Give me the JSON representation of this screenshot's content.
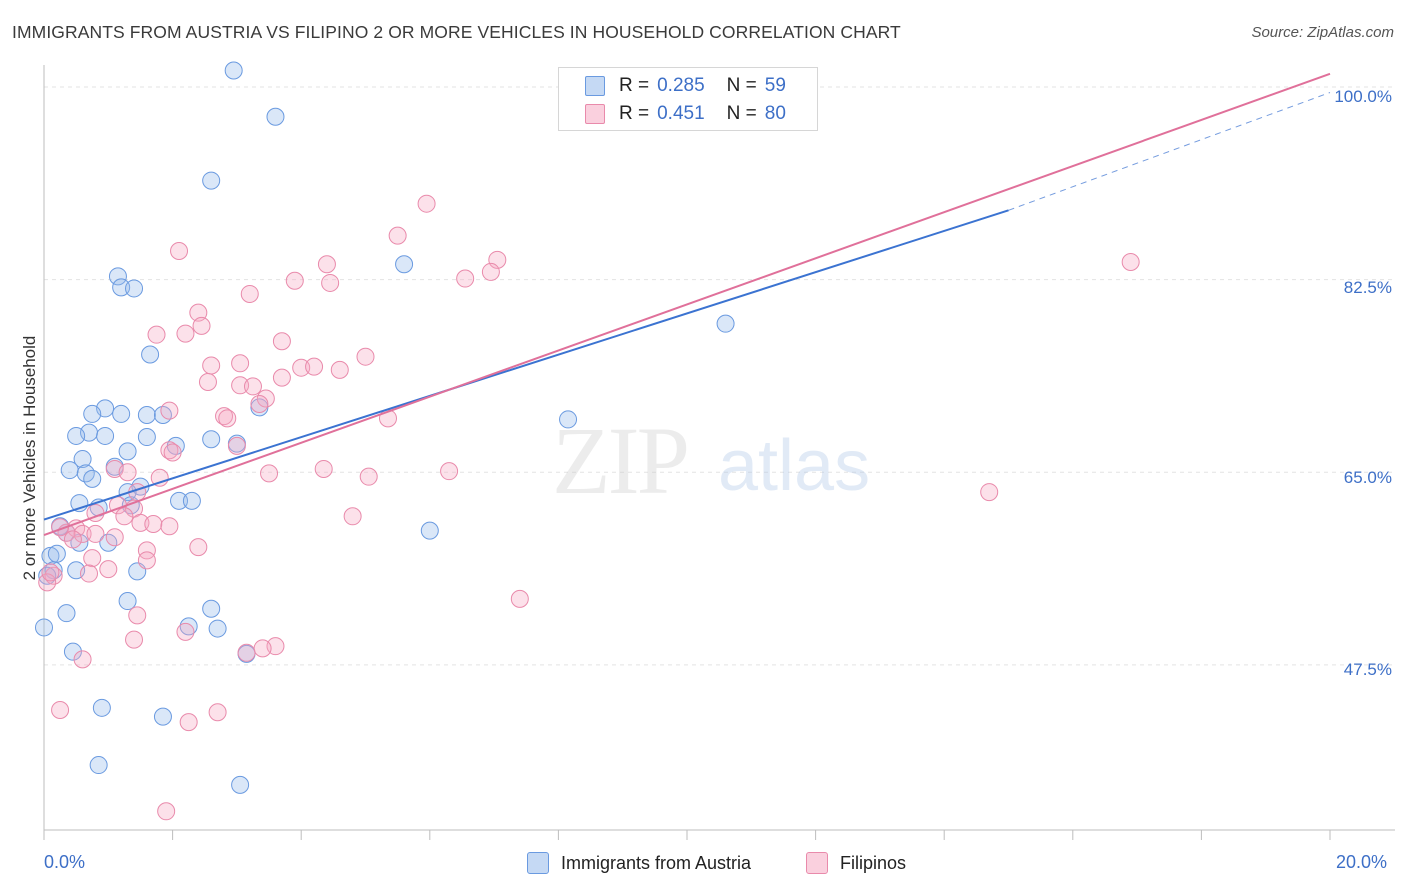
{
  "title": "IMMIGRANTS FROM AUSTRIA VS FILIPINO 2 OR MORE VEHICLES IN HOUSEHOLD CORRELATION CHART",
  "source": "Source: ZipAtlas.com",
  "watermark": {
    "zip": "ZIP",
    "atlas": "atlas"
  },
  "legend": {
    "rows": [
      {
        "r_label": "R =",
        "r_value": "0.285",
        "n_label": "N =",
        "n_value": "59"
      },
      {
        "r_label": "R =",
        "r_value": "0.451",
        "n_label": "N =",
        "n_value": "80"
      }
    ]
  },
  "bottom_legend": [
    "Immigrants from Austria",
    "Filipinos"
  ],
  "colors": {
    "blue_fill": "rgba(150,185,235,0.35)",
    "blue_stroke": "#6a9ae0",
    "blue_line": "#3b73d1",
    "pink_fill": "rgba(245,170,195,0.35)",
    "pink_stroke": "#e98aab",
    "pink_line": "#e0709a",
    "axis_text": "#3d6fc7",
    "grid": "#e3e3e3"
  },
  "chart_data": {
    "type": "scatter",
    "title": "IMMIGRANTS FROM AUSTRIA VS FILIPINO 2 OR MORE VEHICLES IN HOUSEHOLD CORRELATION CHART",
    "xlabel": "",
    "ylabel": "2 or more Vehicles in Household",
    "xlim": [
      0,
      20
    ],
    "ylim": [
      32.5,
      102
    ],
    "x_ticks_labels": [
      "0.0%",
      "20.0%"
    ],
    "y_ticks": [
      47.5,
      65.0,
      82.5,
      100.0
    ],
    "y_ticks_labels": [
      "47.5%",
      "65.0%",
      "82.5%",
      "100.0%"
    ],
    "grid": true,
    "series": [
      {
        "name": "Immigrants from Austria",
        "color": "blue",
        "trend": {
          "x0": 0.0,
          "y0": 60.7,
          "x1": 15.0,
          "y1": 88.8,
          "dash_to_x": 20.0,
          "dash_to_y": 99.5
        },
        "points": [
          {
            "x": 2.95,
            "y": 101.5
          },
          {
            "x": 3.6,
            "y": 97.3
          },
          {
            "x": 2.6,
            "y": 91.5
          },
          {
            "x": 5.6,
            "y": 83.9
          },
          {
            "x": 1.15,
            "y": 82.8
          },
          {
            "x": 1.2,
            "y": 81.8
          },
          {
            "x": 1.4,
            "y": 81.7
          },
          {
            "x": 1.65,
            "y": 75.7
          },
          {
            "x": 10.6,
            "y": 78.5
          },
          {
            "x": 0.95,
            "y": 70.8
          },
          {
            "x": 0.75,
            "y": 70.3
          },
          {
            "x": 1.2,
            "y": 70.3
          },
          {
            "x": 1.6,
            "y": 70.2
          },
          {
            "x": 3.35,
            "y": 70.9
          },
          {
            "x": 8.15,
            "y": 69.8
          },
          {
            "x": 0.7,
            "y": 68.6
          },
          {
            "x": 0.5,
            "y": 68.3
          },
          {
            "x": 0.95,
            "y": 68.3
          },
          {
            "x": 1.6,
            "y": 68.2
          },
          {
            "x": 2.6,
            "y": 68.0
          },
          {
            "x": 3.0,
            "y": 67.6
          },
          {
            "x": 2.05,
            "y": 67.4
          },
          {
            "x": 1.3,
            "y": 66.9
          },
          {
            "x": 0.6,
            "y": 66.2
          },
          {
            "x": 0.4,
            "y": 65.2
          },
          {
            "x": 0.65,
            "y": 64.9
          },
          {
            "x": 1.1,
            "y": 65.5
          },
          {
            "x": 0.75,
            "y": 64.4
          },
          {
            "x": 1.5,
            "y": 63.7
          },
          {
            "x": 1.3,
            "y": 63.2
          },
          {
            "x": 2.1,
            "y": 62.4
          },
          {
            "x": 2.3,
            "y": 62.4
          },
          {
            "x": 0.55,
            "y": 62.2
          },
          {
            "x": 0.85,
            "y": 61.8
          },
          {
            "x": 1.35,
            "y": 62.0
          },
          {
            "x": 0.25,
            "y": 60.1
          },
          {
            "x": 0.35,
            "y": 59.5
          },
          {
            "x": 6.0,
            "y": 59.7
          },
          {
            "x": 0.55,
            "y": 58.6
          },
          {
            "x": 1.0,
            "y": 58.6
          },
          {
            "x": 0.1,
            "y": 57.4
          },
          {
            "x": 0.15,
            "y": 56.1
          },
          {
            "x": 0.5,
            "y": 56.1
          },
          {
            "x": 1.45,
            "y": 56.0
          },
          {
            "x": 0.05,
            "y": 55.6
          },
          {
            "x": 1.3,
            "y": 53.3
          },
          {
            "x": 2.6,
            "y": 52.6
          },
          {
            "x": 0.35,
            "y": 52.2
          },
          {
            "x": 2.25,
            "y": 51.0
          },
          {
            "x": 2.7,
            "y": 50.8
          },
          {
            "x": 0.0,
            "y": 50.9
          },
          {
            "x": 0.45,
            "y": 48.7
          },
          {
            "x": 3.15,
            "y": 48.5
          },
          {
            "x": 0.9,
            "y": 43.6
          },
          {
            "x": 1.85,
            "y": 42.8
          },
          {
            "x": 0.85,
            "y": 38.4
          },
          {
            "x": 3.05,
            "y": 36.6
          },
          {
            "x": 0.2,
            "y": 57.6
          },
          {
            "x": 1.85,
            "y": 70.2
          }
        ]
      },
      {
        "name": "Filipinos",
        "color": "pink",
        "trend": {
          "x0": 0.0,
          "y0": 59.3,
          "x1": 20.0,
          "y1": 101.2
        },
        "points": [
          {
            "x": 5.95,
            "y": 89.4
          },
          {
            "x": 5.5,
            "y": 86.5
          },
          {
            "x": 2.1,
            "y": 85.1
          },
          {
            "x": 7.05,
            "y": 84.3
          },
          {
            "x": 4.4,
            "y": 83.9
          },
          {
            "x": 6.95,
            "y": 83.2
          },
          {
            "x": 4.45,
            "y": 82.2
          },
          {
            "x": 3.9,
            "y": 82.4
          },
          {
            "x": 6.55,
            "y": 82.6
          },
          {
            "x": 16.9,
            "y": 84.1
          },
          {
            "x": 3.2,
            "y": 81.2
          },
          {
            "x": 2.4,
            "y": 79.5
          },
          {
            "x": 2.45,
            "y": 78.3
          },
          {
            "x": 1.75,
            "y": 77.5
          },
          {
            "x": 2.2,
            "y": 77.6
          },
          {
            "x": 3.7,
            "y": 76.9
          },
          {
            "x": 5.0,
            "y": 75.5
          },
          {
            "x": 3.05,
            "y": 74.9
          },
          {
            "x": 2.6,
            "y": 74.7
          },
          {
            "x": 4.0,
            "y": 74.5
          },
          {
            "x": 4.2,
            "y": 74.6
          },
          {
            "x": 4.6,
            "y": 74.3
          },
          {
            "x": 2.55,
            "y": 73.2
          },
          {
            "x": 3.05,
            "y": 72.9
          },
          {
            "x": 3.25,
            "y": 72.8
          },
          {
            "x": 3.45,
            "y": 71.7
          },
          {
            "x": 3.35,
            "y": 71.2
          },
          {
            "x": 1.95,
            "y": 70.6
          },
          {
            "x": 2.8,
            "y": 70.1
          },
          {
            "x": 2.85,
            "y": 69.9
          },
          {
            "x": 5.35,
            "y": 69.9
          },
          {
            "x": 3.0,
            "y": 67.4
          },
          {
            "x": 1.95,
            "y": 67.0
          },
          {
            "x": 1.1,
            "y": 65.3
          },
          {
            "x": 1.3,
            "y": 65.0
          },
          {
            "x": 3.5,
            "y": 64.9
          },
          {
            "x": 4.35,
            "y": 65.3
          },
          {
            "x": 6.3,
            "y": 65.1
          },
          {
            "x": 5.05,
            "y": 64.6
          },
          {
            "x": 1.8,
            "y": 64.5
          },
          {
            "x": 1.45,
            "y": 63.2
          },
          {
            "x": 14.7,
            "y": 63.2
          },
          {
            "x": 1.15,
            "y": 62.0
          },
          {
            "x": 1.4,
            "y": 61.7
          },
          {
            "x": 0.8,
            "y": 61.3
          },
          {
            "x": 4.8,
            "y": 61.0
          },
          {
            "x": 1.5,
            "y": 60.4
          },
          {
            "x": 1.7,
            "y": 60.3
          },
          {
            "x": 1.95,
            "y": 60.1
          },
          {
            "x": 0.5,
            "y": 59.9
          },
          {
            "x": 0.35,
            "y": 59.5
          },
          {
            "x": 0.6,
            "y": 59.4
          },
          {
            "x": 1.1,
            "y": 59.1
          },
          {
            "x": 0.8,
            "y": 59.4
          },
          {
            "x": 2.4,
            "y": 58.2
          },
          {
            "x": 1.6,
            "y": 57.9
          },
          {
            "x": 0.75,
            "y": 57.2
          },
          {
            "x": 1.6,
            "y": 57.0
          },
          {
            "x": 1.0,
            "y": 56.2
          },
          {
            "x": 0.7,
            "y": 55.8
          },
          {
            "x": 0.15,
            "y": 55.6
          },
          {
            "x": 0.05,
            "y": 55.0
          },
          {
            "x": 7.4,
            "y": 53.5
          },
          {
            "x": 1.45,
            "y": 52.0
          },
          {
            "x": 2.2,
            "y": 50.5
          },
          {
            "x": 1.4,
            "y": 49.8
          },
          {
            "x": 3.6,
            "y": 49.2
          },
          {
            "x": 3.4,
            "y": 49.0
          },
          {
            "x": 3.15,
            "y": 48.6
          },
          {
            "x": 0.6,
            "y": 48.0
          },
          {
            "x": 0.25,
            "y": 43.4
          },
          {
            "x": 2.7,
            "y": 43.2
          },
          {
            "x": 2.25,
            "y": 42.3
          },
          {
            "x": 1.9,
            "y": 34.2
          },
          {
            "x": 0.1,
            "y": 55.9
          },
          {
            "x": 0.25,
            "y": 60.0
          },
          {
            "x": 1.25,
            "y": 61.0
          },
          {
            "x": 2.0,
            "y": 66.8
          },
          {
            "x": 3.7,
            "y": 73.6
          },
          {
            "x": 0.45,
            "y": 58.9
          }
        ]
      }
    ]
  }
}
